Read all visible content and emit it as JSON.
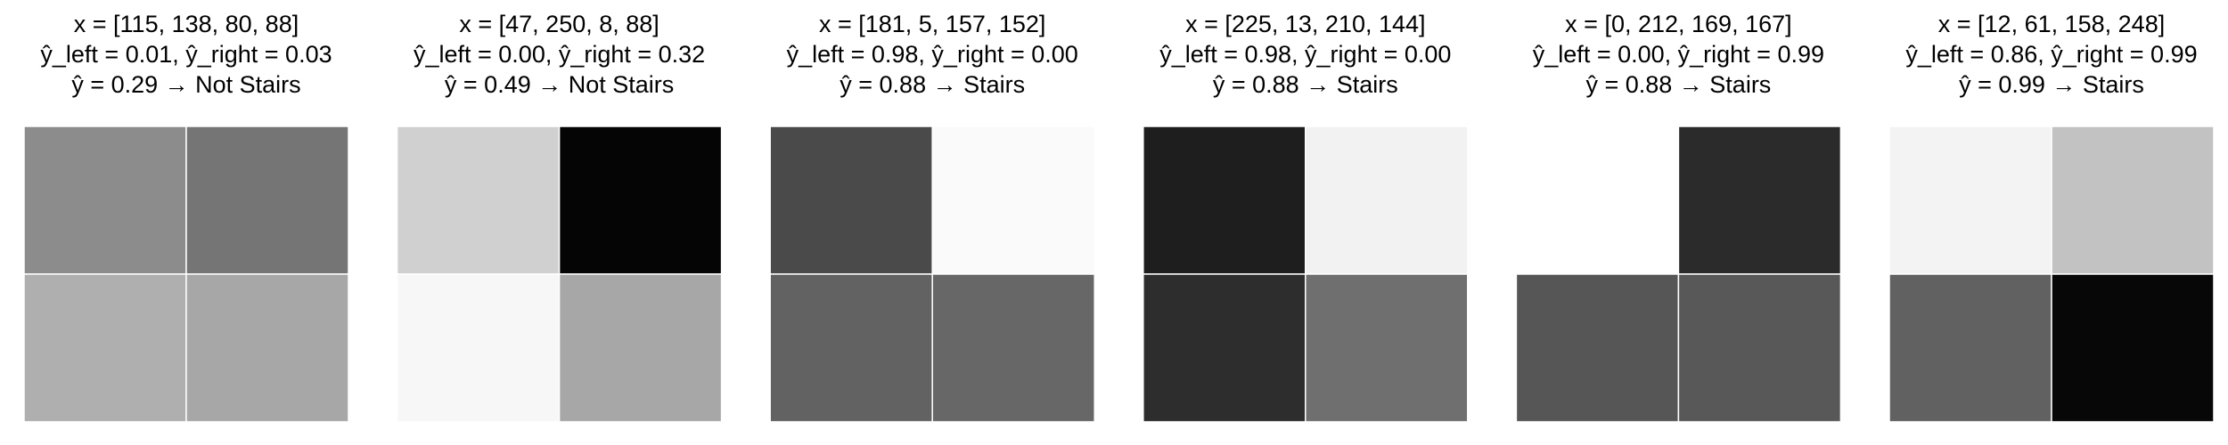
{
  "chart_data": [
    {
      "type": "heatmap",
      "colormap": "gray_r",
      "vlim": [
        0,
        255
      ],
      "title": [
        "x = [115, 138, 80, 88]",
        "ŷ_left = 0.01, ŷ_right = 0.03",
        "ŷ = 0.29 → Not Stairs"
      ],
      "values": [
        [
          115,
          138
        ],
        [
          80,
          88
        ]
      ]
    },
    {
      "type": "heatmap",
      "colormap": "gray_r",
      "vlim": [
        0,
        255
      ],
      "title": [
        "x = [47, 250, 8, 88]",
        "ŷ_left = 0.00, ŷ_right = 0.32",
        "ŷ = 0.49 → Not Stairs"
      ],
      "values": [
        [
          47,
          250
        ],
        [
          8,
          88
        ]
      ]
    },
    {
      "type": "heatmap",
      "colormap": "gray_r",
      "vlim": [
        0,
        255
      ],
      "title": [
        "x = [181, 5, 157, 152]",
        "ŷ_left = 0.98, ŷ_right = 0.00",
        "ŷ = 0.88 → Stairs"
      ],
      "values": [
        [
          181,
          5
        ],
        [
          157,
          152
        ]
      ]
    },
    {
      "type": "heatmap",
      "colormap": "gray_r",
      "vlim": [
        0,
        255
      ],
      "title": [
        "x = [225, 13, 210, 144]",
        "ŷ_left = 0.98, ŷ_right = 0.00",
        "ŷ = 0.88 → Stairs"
      ],
      "values": [
        [
          225,
          13
        ],
        [
          210,
          144
        ]
      ]
    },
    {
      "type": "heatmap",
      "colormap": "gray_r",
      "vlim": [
        0,
        255
      ],
      "title": [
        "x = [0, 212, 169, 167]",
        "ŷ_left = 0.00, ŷ_right = 0.99",
        "ŷ = 0.88 → Stairs"
      ],
      "values": [
        [
          0,
          212
        ],
        [
          169,
          167
        ]
      ]
    },
    {
      "type": "heatmap",
      "colormap": "gray_r",
      "vlim": [
        0,
        255
      ],
      "title": [
        "x = [12, 61, 158, 248]",
        "ŷ_left = 0.86, ŷ_right = 0.99",
        "ŷ = 0.99 → Stairs"
      ],
      "values": [
        [
          12,
          61
        ],
        [
          158,
          248
        ]
      ]
    }
  ]
}
